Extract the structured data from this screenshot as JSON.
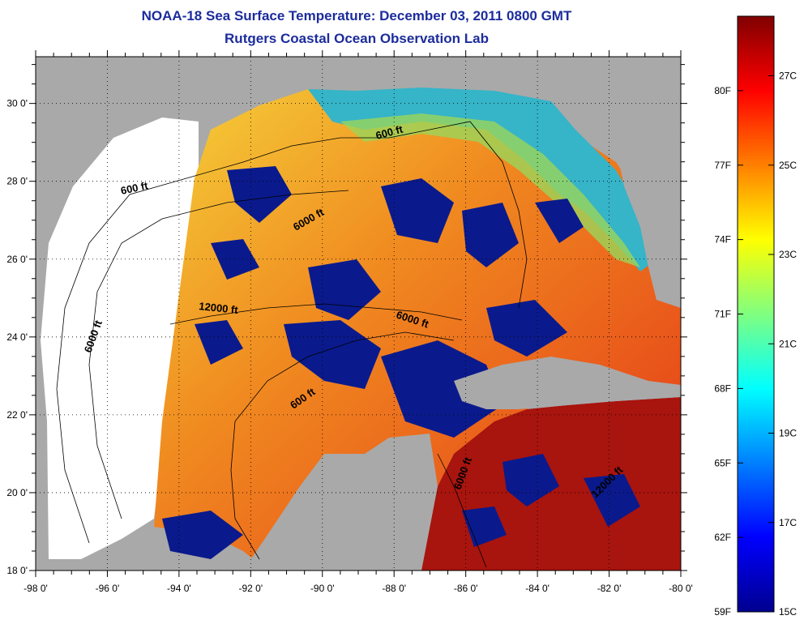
{
  "title": "NOAA-18 Sea Surface Temperature:  December 03, 2011 0800 GMT",
  "subtitle": "Rutgers Coastal Ocean Observation Lab",
  "colors": {
    "land": "#a9a9a9",
    "no_data": "#ffffff",
    "cloud": "#0a1a8c"
  },
  "map": {
    "lat_ticks": [
      "18 0'",
      "20 0'",
      "22 0'",
      "24 0'",
      "26 0'",
      "28 0'",
      "30 0'"
    ],
    "lat_values": [
      18,
      20,
      22,
      24,
      26,
      28,
      30
    ],
    "lon_ticks": [
      "-98 0'",
      "-96 0'",
      "-94 0'",
      "-92 0'",
      "-90 0'",
      "-88 0'",
      "-86 0'",
      "-84 0'",
      "-82 0'",
      "-80 0'"
    ],
    "lon_values": [
      -98,
      -96,
      -94,
      -92,
      -90,
      -88,
      -86,
      -84,
      -82,
      -80
    ],
    "lat_range": [
      18,
      31.2
    ],
    "lon_range": [
      -98,
      -80
    ]
  },
  "contour_labels": [
    {
      "text": "600 ft"
    },
    {
      "text": "600 ft"
    },
    {
      "text": "6000 ft"
    },
    {
      "text": "12000 ft"
    },
    {
      "text": "6000 ft"
    },
    {
      "text": "6000 ft"
    },
    {
      "text": "600 ft"
    },
    {
      "text": "6000 ft"
    },
    {
      "text": "12000 ft"
    }
  ],
  "colorbar": {
    "fahrenheit_labels": [
      "80F",
      "77F",
      "74F",
      "71F",
      "68F",
      "65F",
      "62F",
      "59F"
    ],
    "fahrenheit_values": [
      80,
      77,
      74,
      71,
      68,
      65,
      62,
      59
    ],
    "celsius_labels": [
      "27C",
      "25C",
      "23C",
      "21C",
      "19C",
      "17C",
      "15C"
    ],
    "celsius_values": [
      27,
      25,
      23,
      21,
      19,
      17,
      15
    ],
    "min_f": 59,
    "max_f": 83
  }
}
